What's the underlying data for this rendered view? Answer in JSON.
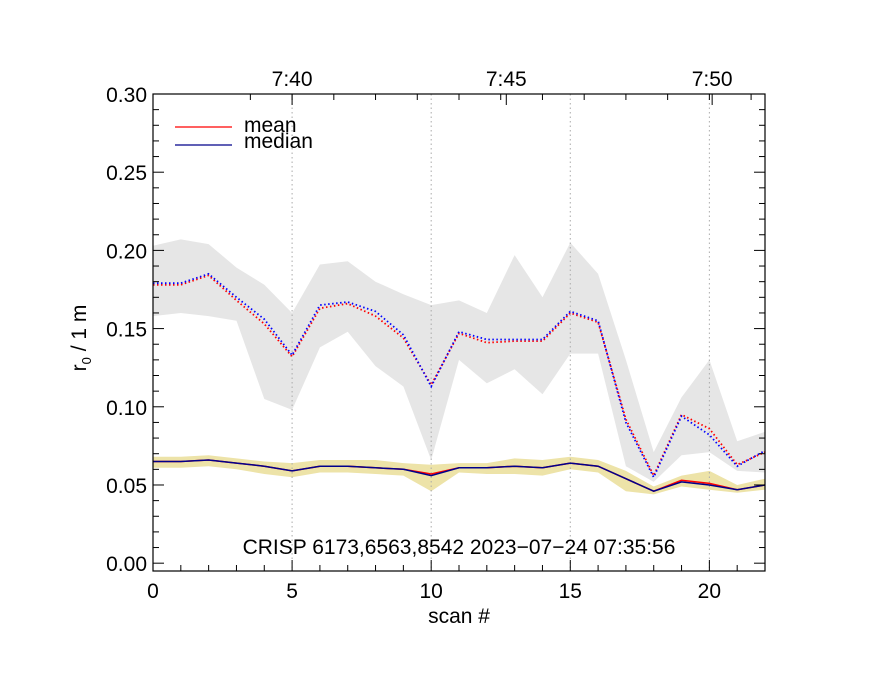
{
  "chart_data": {
    "type": "line",
    "xlabel": "scan #",
    "ylabel": "r",
    "ylabel_subscript": "0",
    "ylabel_suffix": " / 1 m",
    "xlim": [
      0,
      22
    ],
    "ylim": [
      -0.005,
      0.3
    ],
    "x_ticks": [
      0,
      5,
      10,
      15,
      20
    ],
    "x_tick_labels": [
      "0",
      "5",
      "10",
      "15",
      "20"
    ],
    "y_ticks": [
      0.0,
      0.05,
      0.1,
      0.15,
      0.2,
      0.25,
      0.3
    ],
    "y_tick_labels": [
      "0.00",
      "0.05",
      "0.10",
      "0.15",
      "0.20",
      "0.25",
      "0.30"
    ],
    "top_axis": {
      "ticks": [
        5.0,
        12.7,
        20.1
      ],
      "tick_labels": [
        "7:40",
        "7:45",
        "7:50"
      ]
    },
    "annotation": "CRISP 6173,6563,8542 2023−07−24 07:35:56",
    "legend": [
      {
        "label": "mean",
        "color": "#ff0000"
      },
      {
        "label": "median",
        "color": "#00008b"
      }
    ],
    "x": [
      0,
      1,
      2,
      3,
      4,
      5,
      6,
      7,
      8,
      9,
      10,
      11,
      12,
      13,
      14,
      15,
      16,
      17,
      18,
      19,
      20,
      21,
      22
    ],
    "series": [
      {
        "name": "upper mean",
        "style": "dotted",
        "color": "#ff0000",
        "values": [
          0.178,
          0.178,
          0.184,
          0.168,
          0.153,
          0.132,
          0.163,
          0.166,
          0.158,
          0.144,
          0.114,
          0.147,
          0.141,
          0.142,
          0.142,
          0.16,
          0.154,
          0.092,
          0.056,
          0.095,
          0.086,
          0.063,
          0.071
        ]
      },
      {
        "name": "upper median",
        "style": "dotted",
        "color": "#0000ff",
        "values": [
          0.179,
          0.179,
          0.185,
          0.17,
          0.156,
          0.133,
          0.165,
          0.167,
          0.161,
          0.146,
          0.113,
          0.148,
          0.143,
          0.143,
          0.143,
          0.161,
          0.155,
          0.09,
          0.055,
          0.094,
          0.082,
          0.062,
          0.072
        ]
      },
      {
        "name": "lower mean",
        "style": "solid",
        "color": "#ff0000",
        "values": [
          0.065,
          0.065,
          0.066,
          0.064,
          0.062,
          0.059,
          0.062,
          0.062,
          0.061,
          0.06,
          0.057,
          0.061,
          0.061,
          0.062,
          0.061,
          0.064,
          0.062,
          0.054,
          0.046,
          0.053,
          0.051,
          0.047,
          0.05
        ]
      },
      {
        "name": "lower median",
        "style": "solid",
        "color": "#00008b",
        "values": [
          0.065,
          0.065,
          0.066,
          0.064,
          0.062,
          0.059,
          0.062,
          0.062,
          0.061,
          0.06,
          0.056,
          0.061,
          0.061,
          0.062,
          0.061,
          0.064,
          0.062,
          0.054,
          0.046,
          0.052,
          0.05,
          0.047,
          0.05
        ]
      }
    ],
    "bands": [
      {
        "name": "upper range",
        "color": "#e6e6e6",
        "lower": [
          0.158,
          0.16,
          0.158,
          0.155,
          0.105,
          0.098,
          0.138,
          0.148,
          0.126,
          0.113,
          0.066,
          0.13,
          0.115,
          0.124,
          0.108,
          0.134,
          0.134,
          0.062,
          0.052,
          0.069,
          0.071,
          0.059,
          0.058
        ],
        "upper": [
          0.203,
          0.207,
          0.204,
          0.189,
          0.178,
          0.16,
          0.191,
          0.193,
          0.18,
          0.172,
          0.165,
          0.168,
          0.16,
          0.197,
          0.17,
          0.205,
          0.185,
          0.13,
          0.071,
          0.106,
          0.13,
          0.078,
          0.084
        ]
      },
      {
        "name": "lower range",
        "color": "#ede3a8",
        "lower": [
          0.061,
          0.061,
          0.062,
          0.06,
          0.057,
          0.055,
          0.058,
          0.058,
          0.057,
          0.056,
          0.046,
          0.058,
          0.057,
          0.057,
          0.056,
          0.06,
          0.058,
          0.046,
          0.044,
          0.049,
          0.047,
          0.045,
          0.047
        ],
        "upper": [
          0.068,
          0.068,
          0.069,
          0.067,
          0.065,
          0.064,
          0.066,
          0.066,
          0.066,
          0.064,
          0.063,
          0.064,
          0.064,
          0.067,
          0.066,
          0.068,
          0.066,
          0.059,
          0.049,
          0.056,
          0.059,
          0.05,
          0.054
        ]
      }
    ]
  }
}
